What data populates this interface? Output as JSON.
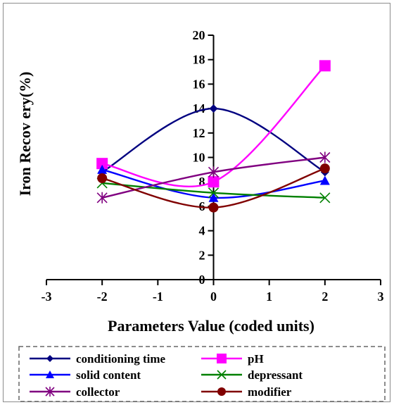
{
  "chart_data": {
    "type": "line",
    "title": "",
    "xlabel": "Parameters Value (coded units)",
    "ylabel": "Iron Recov ery(%)",
    "xlim": [
      -3,
      3
    ],
    "ylim": [
      0,
      20
    ],
    "x_ticks": [
      "-3",
      "-2",
      "-1",
      "0",
      "1",
      "2",
      "3"
    ],
    "y_ticks": [
      "0",
      "2",
      "4",
      "6",
      "8",
      "10",
      "12",
      "14",
      "16",
      "18",
      "20"
    ],
    "x": [
      -2,
      0,
      2
    ],
    "grid": false,
    "legend_position": "bottom",
    "series": [
      {
        "name": "conditioning time",
        "values": [
          8.8,
          14.0,
          8.8
        ],
        "color": "#000080",
        "marker": "diamond"
      },
      {
        "name": "pH",
        "values": [
          9.5,
          8.0,
          17.5
        ],
        "color": "#ff00ff",
        "marker": "square"
      },
      {
        "name": "solid content",
        "values": [
          9.0,
          6.7,
          8.1
        ],
        "color": "#0000ff",
        "marker": "triangle"
      },
      {
        "name": "depressant",
        "values": [
          7.9,
          7.1,
          6.7
        ],
        "color": "#008000",
        "marker": "x"
      },
      {
        "name": "collector",
        "values": [
          6.7,
          8.8,
          10.0
        ],
        "color": "#800080",
        "marker": "asterisk"
      },
      {
        "name": "modifier",
        "values": [
          8.3,
          5.9,
          9.1
        ],
        "color": "#800000",
        "marker": "circle"
      }
    ]
  }
}
